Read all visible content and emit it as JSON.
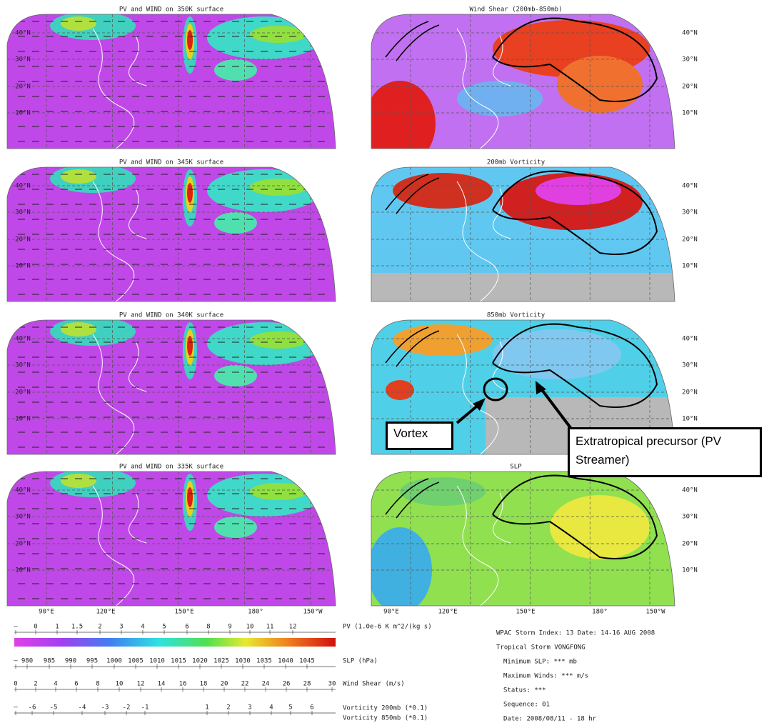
{
  "left_panels": [
    {
      "title": "PV and WIND on 350K surface"
    },
    {
      "title": "PV and WIND on 345K surface"
    },
    {
      "title": "PV and WIND on 340K surface"
    },
    {
      "title": "PV and WIND on 335K surface"
    }
  ],
  "right_panels": [
    {
      "title": "Wind Shear (200mb-850mb)"
    },
    {
      "title": "200mb Vorticity"
    },
    {
      "title": "850mb Vorticity"
    },
    {
      "title": "SLP"
    }
  ],
  "latitude_labels": [
    "40°N",
    "30°N",
    "20°N",
    "10°N"
  ],
  "longitude_labels": [
    "90°E",
    "120°E",
    "150°E",
    "180°",
    "150°W"
  ],
  "colorbar": {
    "rows": [
      {
        "ticks": [
          "–",
          "0",
          "1",
          "1.5",
          "2",
          "3",
          "4",
          "5",
          "6",
          "8",
          "9",
          "10",
          "11",
          "12"
        ],
        "label": "PV (1.0e-6 K m^2/(kg s)"
      },
      {
        "ticks": [
          "–",
          "980",
          "985",
          "990",
          "995",
          "1000",
          "1005",
          "1010",
          "1015",
          "1020",
          "1025",
          "1030",
          "1035",
          "1040",
          "1045"
        ],
        "label": "SLP (hPa)"
      },
      {
        "ticks": [
          "0",
          "2",
          "4",
          "6",
          "8",
          "10",
          "12",
          "14",
          "16",
          "18",
          "20",
          "22",
          "24",
          "26",
          "28",
          "30"
        ],
        "label": "Wind Shear (m/s)"
      },
      {
        "ticks": [
          "–",
          "-6",
          "-5",
          "-4",
          "-3",
          "-2",
          "-1",
          "1",
          "2",
          "3",
          "4",
          "5",
          "6"
        ],
        "label": "Vorticity 200mb (*0.1)",
        "label2": "Vorticity 850mb (*0.1)"
      }
    ]
  },
  "storm_info": [
    "WPAC Storm Index: 13 Date: 14-16 AUG 2008",
    "Tropical Storm VONGFONG",
    "Minimum SLP: *** mb",
    "Maximum Winds: *** m/s",
    "Status: ***",
    "Sequence: 01",
    "Date: 2008/08/11 - 18 hr"
  ],
  "annotations": {
    "vortex": "Vortex",
    "precursor": "Extratropical precursor (PV Streamer)"
  }
}
